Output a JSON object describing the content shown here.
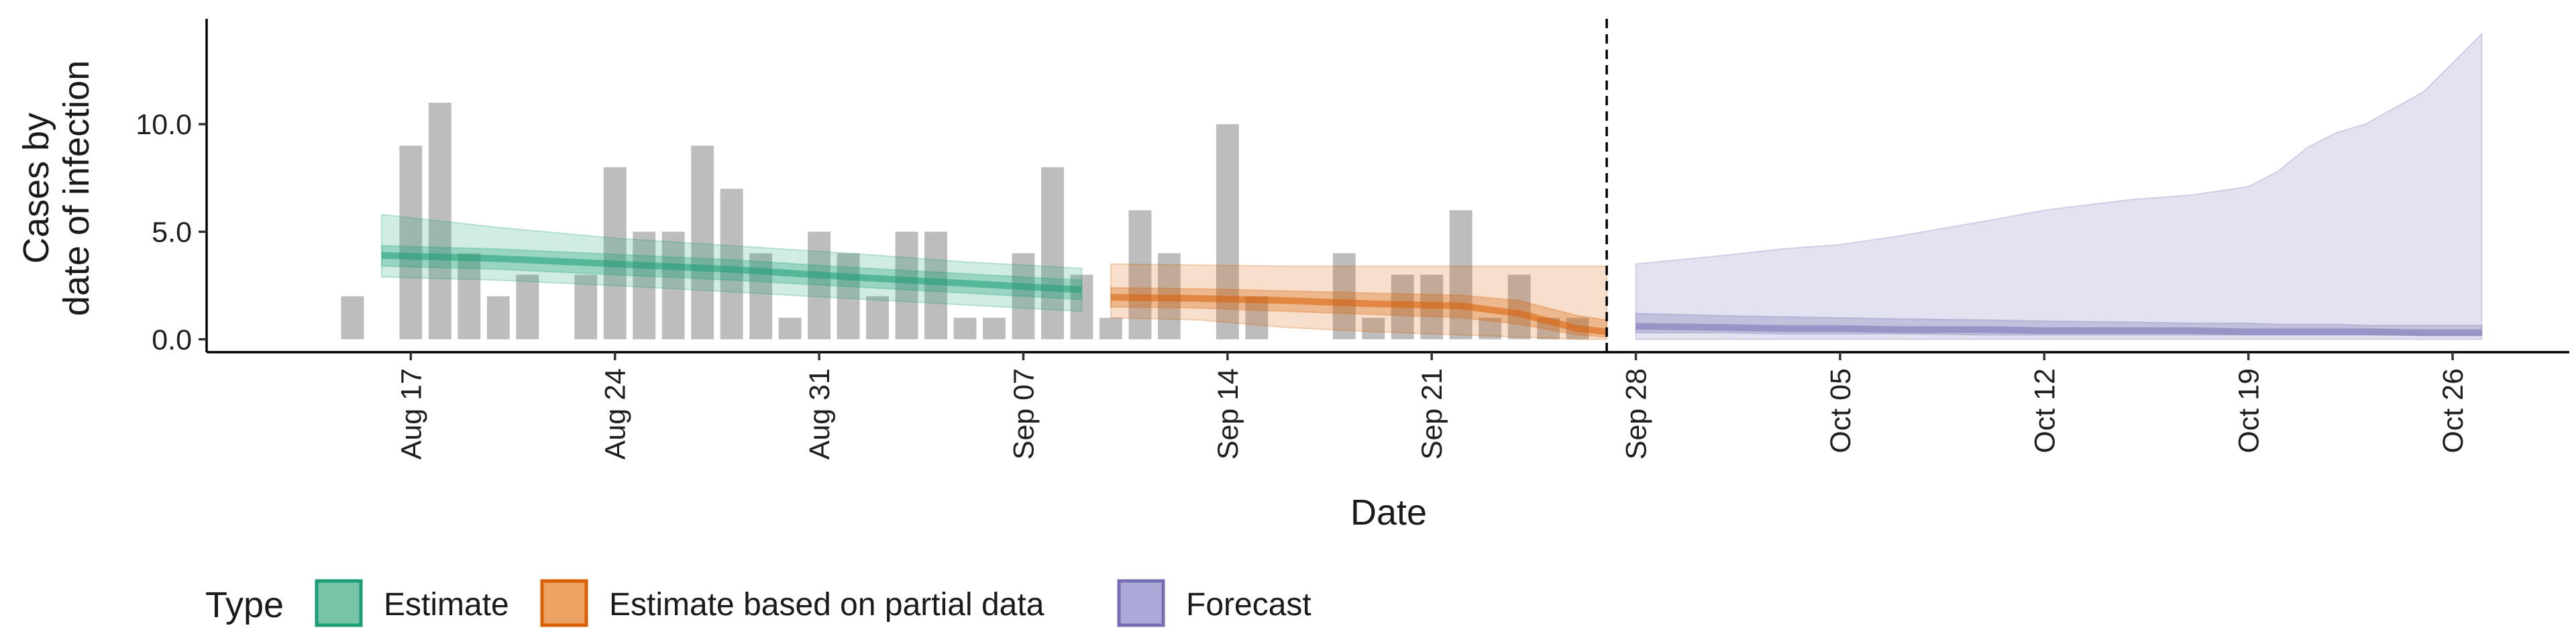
{
  "chart_data": {
    "type": "bar",
    "xlabel": "Date",
    "ylabel": [
      "Cases by",
      "date of infection"
    ],
    "ylim": [
      -0.6,
      14.9
    ],
    "y_ticks": [
      0,
      5,
      10
    ],
    "y_tick_labels": [
      "0.0",
      "5.0",
      "10.0"
    ],
    "x_ticks": [
      "2020-08-17",
      "2020-08-24",
      "2020-08-31",
      "2020-09-07",
      "2020-09-14",
      "2020-09-21",
      "2020-09-28",
      "2020-10-05",
      "2020-10-12",
      "2020-10-19",
      "2020-10-26"
    ],
    "x_tick_labels": [
      "Aug 17",
      "Aug 24",
      "Aug 31",
      "Sep 07",
      "Sep 14",
      "Sep 21",
      "Sep 28",
      "Oct 05",
      "Oct 12",
      "Oct 19",
      "Oct 26"
    ],
    "xlim": [
      "2020-08-10",
      "2020-10-30"
    ],
    "vline": "2020-09-27",
    "cases": {
      "dates": [
        "2020-08-15",
        "2020-08-16",
        "2020-08-17",
        "2020-08-18",
        "2020-08-19",
        "2020-08-20",
        "2020-08-21",
        "2020-08-22",
        "2020-08-23",
        "2020-08-24",
        "2020-08-25",
        "2020-08-26",
        "2020-08-27",
        "2020-08-28",
        "2020-08-29",
        "2020-08-30",
        "2020-08-31",
        "2020-09-01",
        "2020-09-02",
        "2020-09-03",
        "2020-09-04",
        "2020-09-05",
        "2020-09-06",
        "2020-09-07",
        "2020-09-08",
        "2020-09-09",
        "2020-09-10",
        "2020-09-11",
        "2020-09-12",
        "2020-09-13",
        "2020-09-14",
        "2020-09-15",
        "2020-09-16",
        "2020-09-17",
        "2020-09-18",
        "2020-09-19",
        "2020-09-20",
        "2020-09-21",
        "2020-09-22",
        "2020-09-23",
        "2020-09-24",
        "2020-09-25",
        "2020-09-26",
        "2020-09-27"
      ],
      "values": [
        2,
        0,
        9,
        11,
        4,
        2,
        3,
        0,
        3,
        8,
        5,
        5,
        9,
        7,
        4,
        1,
        5,
        4,
        2,
        5,
        5,
        1,
        1,
        4,
        8,
        3,
        1,
        6,
        4,
        0,
        10,
        2,
        0,
        0,
        4,
        1,
        3,
        3,
        6,
        1,
        3,
        1,
        1,
        0
      ]
    },
    "series": [
      {
        "name": "Estimate",
        "color": "#1b9e77",
        "dates": [
          "2020-08-16",
          "2020-08-20",
          "2020-08-24",
          "2020-08-28",
          "2020-09-01",
          "2020-09-05",
          "2020-09-09"
        ],
        "median": [
          3.9,
          3.75,
          3.5,
          3.25,
          2.9,
          2.6,
          2.3
        ],
        "lower50": [
          3.4,
          3.25,
          3.0,
          2.75,
          2.45,
          2.15,
          1.85
        ],
        "upper50": [
          4.35,
          4.2,
          3.95,
          3.7,
          3.35,
          3.05,
          2.75
        ],
        "lower90": [
          2.9,
          2.75,
          2.5,
          2.2,
          1.9,
          1.6,
          1.3
        ],
        "upper90": [
          5.8,
          5.2,
          4.7,
          4.35,
          4.0,
          3.6,
          3.3
        ]
      },
      {
        "name": "Estimate based on partial data",
        "color": "#d95f02",
        "dates": [
          "2020-09-10",
          "2020-09-13",
          "2020-09-16",
          "2020-09-19",
          "2020-09-22",
          "2020-09-24",
          "2020-09-26",
          "2020-09-27"
        ],
        "median": [
          1.95,
          1.9,
          1.8,
          1.65,
          1.55,
          1.2,
          0.5,
          0.35
        ],
        "lower50": [
          1.5,
          1.45,
          1.3,
          1.15,
          1.0,
          0.7,
          0.2,
          0.1
        ],
        "upper50": [
          2.4,
          2.35,
          2.25,
          2.15,
          2.05,
          1.8,
          1.1,
          0.9
        ],
        "lower90": [
          1.0,
          0.9,
          0.55,
          0.35,
          0.2,
          0.1,
          0.0,
          0.0
        ],
        "upper90": [
          3.5,
          3.45,
          3.4,
          3.4,
          3.4,
          3.4,
          3.4,
          3.4
        ]
      },
      {
        "name": "Forecast",
        "color": "#7570b3",
        "dates": [
          "2020-09-28",
          "2020-10-01",
          "2020-10-03",
          "2020-10-05",
          "2020-10-07",
          "2020-10-10",
          "2020-10-12",
          "2020-10-15",
          "2020-10-17",
          "2020-10-19",
          "2020-10-20",
          "2020-10-21",
          "2020-10-22",
          "2020-10-23",
          "2020-10-25",
          "2020-10-27"
        ],
        "median": [
          0.6,
          0.55,
          0.5,
          0.5,
          0.45,
          0.45,
          0.4,
          0.4,
          0.4,
          0.35,
          0.35,
          0.35,
          0.35,
          0.35,
          0.3,
          0.3
        ],
        "lower50": [
          0.3,
          0.3,
          0.25,
          0.25,
          0.25,
          0.2,
          0.2,
          0.2,
          0.2,
          0.2,
          0.2,
          0.2,
          0.2,
          0.2,
          0.2,
          0.2
        ],
        "upper50": [
          1.2,
          1.1,
          1.05,
          1.0,
          0.95,
          0.9,
          0.85,
          0.8,
          0.75,
          0.75,
          0.7,
          0.7,
          0.7,
          0.65,
          0.65,
          0.65
        ],
        "lower90": [
          0.0,
          0.0,
          0.0,
          0.0,
          0.0,
          0.0,
          0.0,
          0.0,
          0.0,
          0.0,
          0.0,
          0.0,
          0.0,
          0.0,
          0.0,
          0.0
        ],
        "upper90": [
          3.5,
          3.9,
          4.2,
          4.4,
          4.8,
          5.5,
          6.0,
          6.5,
          6.7,
          7.1,
          7.8,
          8.9,
          9.6,
          10.0,
          11.5,
          14.2
        ]
      }
    ],
    "legend": {
      "title": "Type",
      "position": "bottom",
      "items": [
        {
          "label": "Estimate",
          "fill": "#77c4a6",
          "stroke": "#1b9e77"
        },
        {
          "label": "Estimate based on partial data",
          "fill": "#eba263",
          "stroke": "#d95f02"
        },
        {
          "label": "Forecast",
          "fill": "#acaad6",
          "stroke": "#7570b3"
        }
      ]
    },
    "colors": {
      "bars": "#bdbdbd",
      "axis": "#000000"
    },
    "grid": false
  }
}
